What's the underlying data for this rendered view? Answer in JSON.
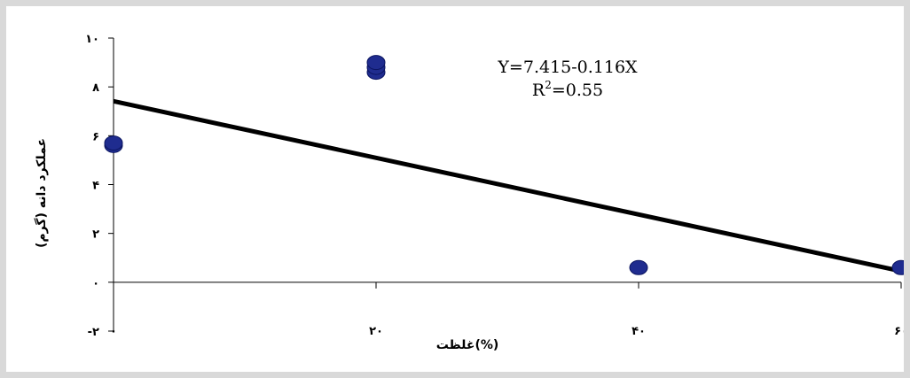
{
  "chart_data": {
    "type": "scatter",
    "xlabel": "غلظت(%)",
    "ylabel": "عملکرد دانه (گرم)",
    "xlim": [
      0,
      60
    ],
    "ylim": [
      -2,
      10
    ],
    "x_ticks": [
      0,
      20,
      40,
      60
    ],
    "x_tick_labels": [
      "۰",
      "۲۰",
      "۴۰",
      "۶۰"
    ],
    "y_ticks": [
      -2,
      0,
      2,
      4,
      6,
      8,
      10
    ],
    "y_tick_labels": [
      "-۲",
      "۰",
      "۲",
      "۴",
      "۶",
      "۸",
      "۱۰"
    ],
    "points": [
      {
        "x": 0,
        "y": 5.6
      },
      {
        "x": 0,
        "y": 5.7
      },
      {
        "x": 20,
        "y": 8.6
      },
      {
        "x": 20,
        "y": 8.8
      },
      {
        "x": 20,
        "y": 9.0
      },
      {
        "x": 40,
        "y": 0.6
      },
      {
        "x": 60,
        "y": 0.6
      }
    ],
    "trendline": {
      "intercept": 7.415,
      "slope": -0.116
    },
    "equation": "Y=7.415-0.116X",
    "r2_prefix": "R",
    "r2_sup": "2",
    "r2_value": "=0.55",
    "grid": false,
    "legend": "none",
    "marker_color": "#1f2c8f",
    "line_color": "#000000"
  }
}
